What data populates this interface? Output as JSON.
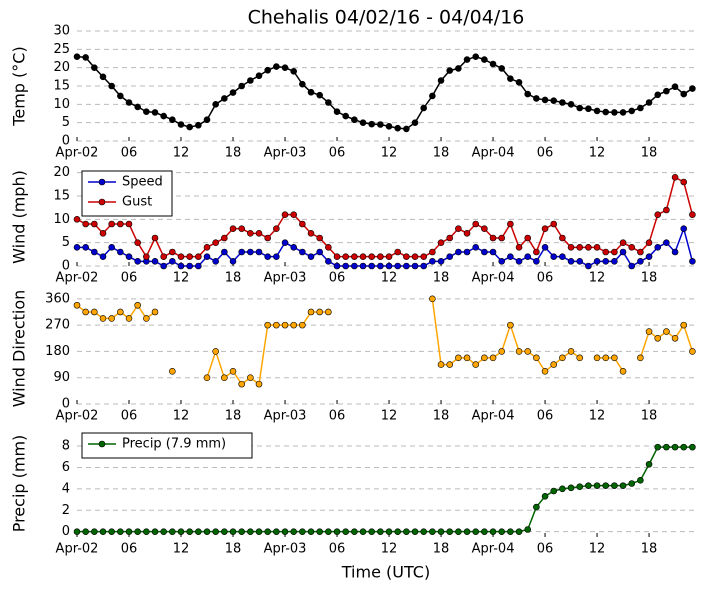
{
  "chart_data": [
    {
      "type": "line",
      "title": "Chehalis 04/02/16 - 04/04/16",
      "ylabel": "Temp (°C)",
      "x": [
        0,
        1,
        2,
        3,
        4,
        5,
        6,
        7,
        8,
        9,
        10,
        11,
        12,
        13,
        14,
        15,
        16,
        17,
        18,
        19,
        20,
        21,
        22,
        23,
        24,
        25,
        26,
        27,
        28,
        29,
        30,
        31,
        32,
        33,
        34,
        35,
        36,
        37,
        38,
        39,
        40,
        41,
        42,
        43,
        44,
        45,
        46,
        47,
        48,
        49,
        50,
        51,
        52,
        53,
        54,
        55,
        56,
        57,
        58,
        59,
        60,
        61,
        62,
        63,
        64,
        65,
        66,
        67,
        68,
        69,
        70,
        71
      ],
      "series": [
        {
          "name": "Temp",
          "color": "#000000",
          "values": [
            23,
            22.8,
            20,
            17.5,
            15,
            12.3,
            10.5,
            9.3,
            8,
            7.8,
            6.8,
            5.8,
            4.5,
            3.8,
            4.3,
            5.8,
            10,
            11.6,
            13.2,
            15,
            16.5,
            17.8,
            19.3,
            20.3,
            20,
            19,
            15.5,
            13.3,
            12.5,
            10.5,
            8,
            6.8,
            5.8,
            5,
            4.6,
            4.5,
            4,
            3.5,
            3.3,
            5,
            9,
            12.3,
            16.5,
            19.2,
            19.8,
            22.2,
            23,
            22.2,
            21,
            19.8,
            17,
            16,
            12.8,
            11.6,
            11.2,
            11,
            10.5,
            10,
            9,
            8.8,
            8.2,
            7.9,
            7.8,
            7.8,
            8.2,
            9,
            10.5,
            12.6,
            13.6,
            14.8,
            12.8,
            14.3
          ]
        }
      ],
      "xlim": [
        0,
        71.3
      ],
      "xticks": [
        {
          "value": 0,
          "label": "Apr-02"
        },
        {
          "value": 6,
          "label": "06"
        },
        12,
        18,
        {
          "value": 24,
          "label": "Apr-03"
        },
        {
          "value": 30,
          "label": "06"
        },
        {
          "value": 36,
          "label": "12"
        },
        {
          "value": 42,
          "label": "18"
        },
        {
          "value": 48,
          "label": "Apr-04"
        },
        {
          "value": 54,
          "label": "06"
        },
        {
          "value": 60,
          "label": "12"
        },
        {
          "value": 66,
          "label": "18"
        }
      ],
      "ylim": [
        0,
        30
      ],
      "yticks": [
        0,
        5,
        10,
        15,
        20,
        25,
        30
      ],
      "grid": true
    },
    {
      "type": "line",
      "ylabel": "Wind (mph)",
      "x": [
        0,
        1,
        2,
        3,
        4,
        5,
        6,
        7,
        8,
        9,
        10,
        11,
        12,
        13,
        14,
        15,
        16,
        17,
        18,
        19,
        20,
        21,
        22,
        23,
        24,
        25,
        26,
        27,
        28,
        29,
        30,
        31,
        32,
        33,
        34,
        35,
        36,
        37,
        38,
        39,
        40,
        41,
        42,
        43,
        44,
        45,
        46,
        47,
        48,
        49,
        50,
        51,
        52,
        53,
        54,
        55,
        56,
        57,
        58,
        59,
        60,
        61,
        62,
        63,
        64,
        65,
        66,
        67,
        68,
        69,
        70,
        71
      ],
      "series": [
        {
          "name": "Speed",
          "color": "#0000cc",
          "values": [
            4,
            4,
            3,
            2,
            4,
            3,
            2,
            1,
            1,
            1,
            0,
            1,
            0,
            0,
            0,
            2,
            1,
            3,
            1,
            3,
            3,
            3,
            2,
            2,
            5,
            4,
            3,
            2,
            3,
            1,
            0,
            0,
            0,
            0,
            0,
            0,
            0,
            0,
            0,
            0,
            0,
            1,
            1,
            2,
            3,
            3,
            4,
            3,
            3,
            1,
            2,
            1,
            2,
            1,
            4,
            2,
            2,
            1,
            1,
            0,
            1,
            1,
            1,
            3,
            0,
            1,
            2,
            4,
            5,
            3,
            8,
            1
          ]
        },
        {
          "name": "Gust",
          "color": "#cc0000",
          "values": [
            10,
            9,
            9,
            7,
            9,
            9,
            9,
            5,
            2,
            6,
            2,
            3,
            2,
            2,
            2,
            4,
            5,
            6,
            8,
            8,
            7,
            7,
            6,
            8,
            11,
            11,
            9,
            7,
            6,
            4,
            2,
            2,
            2,
            2,
            2,
            2,
            2,
            3,
            2,
            2,
            2,
            3,
            5,
            6,
            8,
            7,
            9,
            8,
            6,
            6,
            9,
            4,
            6,
            3,
            8,
            9,
            6,
            4,
            4,
            4,
            4,
            3,
            3,
            5,
            4,
            3,
            5,
            11,
            12,
            19,
            18,
            11
          ]
        }
      ],
      "xlim": [
        0,
        71.3
      ],
      "xticks": [
        {
          "value": 0,
          "label": "Apr-02"
        },
        {
          "value": 6,
          "label": "06"
        },
        12,
        18,
        {
          "value": 24,
          "label": "Apr-03"
        },
        {
          "value": 30,
          "label": "06"
        },
        {
          "value": 36,
          "label": "12"
        },
        {
          "value": 42,
          "label": "18"
        },
        {
          "value": 48,
          "label": "Apr-04"
        },
        {
          "value": 54,
          "label": "06"
        },
        {
          "value": 60,
          "label": "12"
        },
        {
          "value": 66,
          "label": "18"
        }
      ],
      "ylim": [
        0,
        21
      ],
      "yticks": [
        0,
        5,
        10,
        15,
        20
      ],
      "grid": true,
      "legend": "upper left"
    },
    {
      "type": "line",
      "ylabel": "Wind Direction",
      "x": [
        0,
        1,
        2,
        3,
        4,
        5,
        6,
        7,
        8,
        9,
        10,
        11,
        12,
        13,
        14,
        15,
        16,
        17,
        18,
        19,
        20,
        21,
        22,
        23,
        24,
        25,
        26,
        27,
        28,
        29,
        30,
        31,
        32,
        33,
        34,
        35,
        36,
        37,
        38,
        39,
        40,
        41,
        42,
        43,
        44,
        45,
        46,
        47,
        48,
        49,
        50,
        51,
        52,
        53,
        54,
        55,
        56,
        57,
        58,
        59,
        60,
        61,
        62,
        63,
        64,
        65,
        66,
        67,
        68,
        69,
        70,
        71
      ],
      "series": [
        {
          "name": "Direction",
          "color": "#ffa500",
          "values": [
            338,
            315,
            315,
            293,
            293,
            315,
            293,
            338,
            293,
            315,
            null,
            112,
            null,
            null,
            null,
            90,
            180,
            90,
            112,
            68,
            90,
            68,
            270,
            270,
            270,
            270,
            270,
            315,
            315,
            315,
            null,
            null,
            null,
            null,
            null,
            null,
            null,
            null,
            null,
            null,
            null,
            360,
            135,
            135,
            158,
            158,
            135,
            158,
            158,
            180,
            270,
            180,
            180,
            158,
            112,
            135,
            158,
            180,
            158,
            null,
            158,
            158,
            158,
            112,
            null,
            158,
            248,
            225,
            248,
            225,
            270,
            180
          ]
        }
      ],
      "xlim": [
        0,
        71.3
      ],
      "xticks": [
        {
          "value": 0,
          "label": "Apr-02"
        },
        {
          "value": 6,
          "label": "06"
        },
        12,
        18,
        {
          "value": 24,
          "label": "Apr-03"
        },
        {
          "value": 30,
          "label": "06"
        },
        {
          "value": 36,
          "label": "12"
        },
        {
          "value": 42,
          "label": "18"
        },
        {
          "value": 48,
          "label": "Apr-04"
        },
        {
          "value": 54,
          "label": "06"
        },
        {
          "value": 60,
          "label": "12"
        },
        {
          "value": 66,
          "label": "18"
        }
      ],
      "ylim": [
        0,
        380
      ],
      "yticks": [
        0,
        90,
        180,
        270,
        360
      ],
      "grid": true
    },
    {
      "type": "line",
      "ylabel": "Precip (mm)",
      "xlabel": "Time (UTC)",
      "x": [
        0,
        1,
        2,
        3,
        4,
        5,
        6,
        7,
        8,
        9,
        10,
        11,
        12,
        13,
        14,
        15,
        16,
        17,
        18,
        19,
        20,
        21,
        22,
        23,
        24,
        25,
        26,
        27,
        28,
        29,
        30,
        31,
        32,
        33,
        34,
        35,
        36,
        37,
        38,
        39,
        40,
        41,
        42,
        43,
        44,
        45,
        46,
        47,
        48,
        49,
        50,
        51,
        52,
        53,
        54,
        55,
        56,
        57,
        58,
        59,
        60,
        61,
        62,
        63,
        64,
        65,
        66,
        67,
        68,
        69,
        70,
        71
      ],
      "series": [
        {
          "name": "Precip (7.9 mm)",
          "color": "#006400",
          "values": [
            0,
            0,
            0,
            0,
            0,
            0,
            0,
            0,
            0,
            0,
            0,
            0,
            0,
            0,
            0,
            0,
            0,
            0,
            0,
            0,
            0,
            0,
            0,
            0,
            0,
            0,
            0,
            0,
            0,
            0,
            0,
            0,
            0,
            0,
            0,
            0,
            0,
            0,
            0,
            0,
            0,
            0,
            0,
            0,
            0,
            0,
            0,
            0,
            0,
            0,
            0,
            0,
            0.2,
            2.3,
            3.3,
            3.8,
            4.0,
            4.1,
            4.2,
            4.3,
            4.3,
            4.3,
            4.3,
            4.3,
            4.5,
            4.8,
            6.3,
            7.9,
            7.9,
            7.9,
            7.9,
            7.9
          ]
        }
      ],
      "xlim": [
        0,
        71.3
      ],
      "xticks": [
        {
          "value": 0,
          "label": "Apr-02"
        },
        {
          "value": 6,
          "label": "06"
        },
        12,
        18,
        {
          "value": 24,
          "label": "Apr-03"
        },
        {
          "value": 30,
          "label": "06"
        },
        {
          "value": 36,
          "label": "12"
        },
        {
          "value": 42,
          "label": "18"
        },
        {
          "value": 48,
          "label": "Apr-04"
        },
        {
          "value": 54,
          "label": "06"
        },
        {
          "value": 60,
          "label": "12"
        },
        {
          "value": 66,
          "label": "18"
        }
      ],
      "ylim": [
        -0.5,
        9.5
      ],
      "yticks": [
        0,
        2,
        4,
        6,
        8
      ],
      "grid": true,
      "legend": "upper left"
    }
  ]
}
